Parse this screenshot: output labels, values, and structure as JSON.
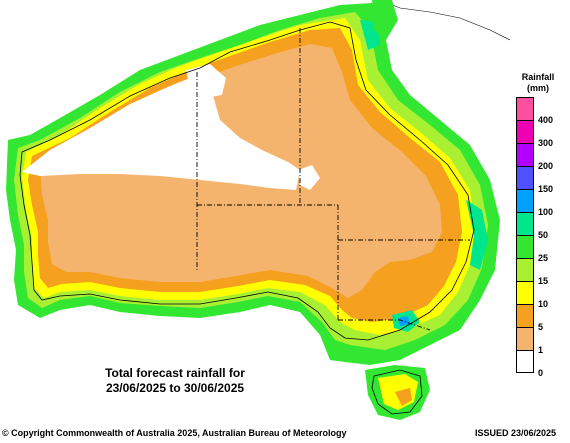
{
  "map": {
    "caption_line1": "Total forecast rainfall for",
    "caption_line2": "23/06/2025 to 30/06/2025"
  },
  "legend": {
    "title_line1": "Rainfall",
    "title_line2": "(mm)",
    "bins": [
      {
        "label": "400",
        "color": "#ff4fa0"
      },
      {
        "label": "300",
        "color": "#f000b4"
      },
      {
        "label": "200",
        "color": "#b400ff"
      },
      {
        "label": "150",
        "color": "#5050ff"
      },
      {
        "label": "100",
        "color": "#00a0ff"
      },
      {
        "label": "50",
        "color": "#00e68c"
      },
      {
        "label": "25",
        "color": "#32e632"
      },
      {
        "label": "15",
        "color": "#aaf032"
      },
      {
        "label": "10",
        "color": "#ffff00"
      },
      {
        "label": "5",
        "color": "#f5a01e"
      },
      {
        "label": "1",
        "color": "#f5b46e"
      },
      {
        "label": "0",
        "color": "#ffffff"
      }
    ]
  },
  "footer": {
    "copyright": "© Copyright Commonwealth of Australia 2025, Australian Bureau of Meteorology",
    "issued": "ISSUED 23/06/2025"
  },
  "colors": {
    "dry": "#ffffff",
    "light": "#f5b46e",
    "moderate": "#f5a01e",
    "yellow": "#ffff00",
    "lime": "#aaf032",
    "green": "#32e632",
    "teal": "#00e68c",
    "blue": "#00a0ff"
  }
}
